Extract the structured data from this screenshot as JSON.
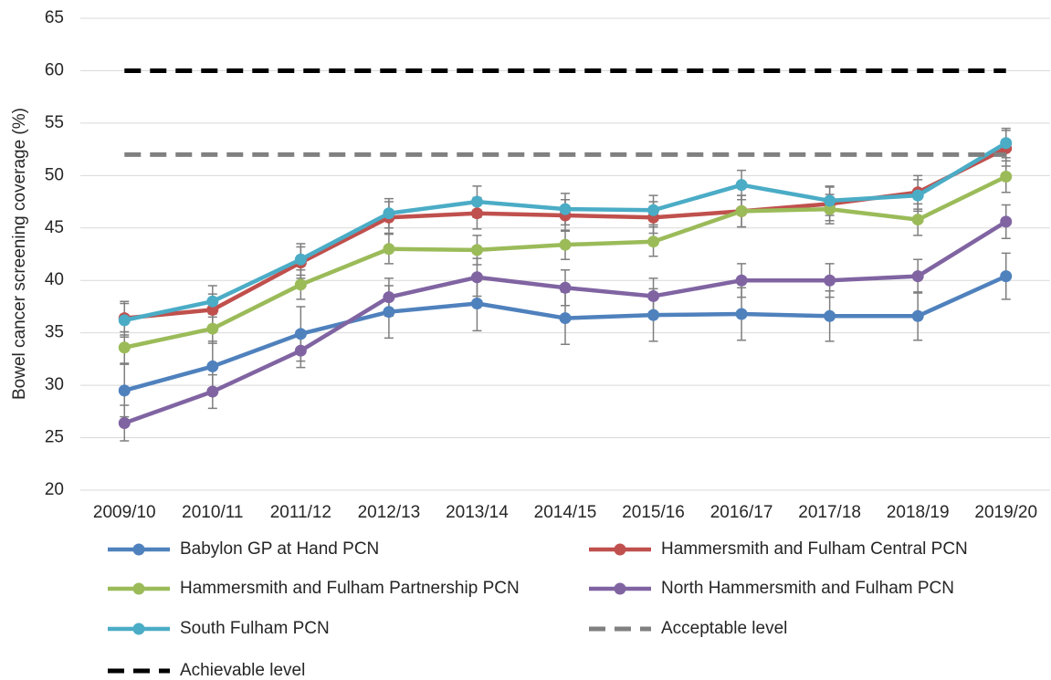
{
  "chart_data": {
    "type": "line",
    "y_label": "Bowel cancer screening coverage (%)",
    "categories": [
      "2009/10",
      "2010/11",
      "2011/12",
      "2012/13",
      "2013/14",
      "2014/15",
      "2015/16",
      "2016/17",
      "2017/18",
      "2018/19",
      "2019/20"
    ],
    "ylim": [
      20,
      65
    ],
    "yticks": [
      20,
      25,
      30,
      35,
      40,
      45,
      50,
      55,
      60,
      65
    ],
    "grid": true,
    "series": [
      {
        "name": "Babylon GP at Hand PCN",
        "color": "#4f81bd",
        "values": [
          29.5,
          31.8,
          34.9,
          37.0,
          37.8,
          36.4,
          36.7,
          36.8,
          36.6,
          36.6,
          40.4
        ],
        "errors": [
          2.5,
          2.4,
          2.6,
          2.5,
          2.6,
          2.5,
          2.5,
          2.5,
          2.4,
          2.3,
          2.2
        ]
      },
      {
        "name": "Hammersmith and Fulham Central PCN",
        "color": "#c0504d",
        "values": [
          36.4,
          37.2,
          41.7,
          46.0,
          46.4,
          46.2,
          46.0,
          46.6,
          47.3,
          48.4,
          52.6
        ],
        "errors": [
          1.6,
          1.5,
          1.5,
          1.5,
          1.5,
          1.5,
          1.5,
          1.5,
          1.6,
          1.6,
          1.7
        ]
      },
      {
        "name": "Hammersmith and Fulham Partnership PCN",
        "color": "#9bbb59",
        "values": [
          33.6,
          35.4,
          39.6,
          43.0,
          42.9,
          43.4,
          43.7,
          46.6,
          46.8,
          45.8,
          49.9
        ],
        "errors": [
          1.5,
          1.4,
          1.4,
          1.4,
          1.4,
          1.4,
          1.4,
          1.5,
          1.4,
          1.5,
          1.5
        ]
      },
      {
        "name": "North Hammersmith and Fulham PCN",
        "color": "#8064a2",
        "values": [
          26.4,
          29.4,
          33.3,
          38.4,
          40.3,
          39.3,
          38.5,
          40.0,
          40.0,
          40.4,
          45.6
        ],
        "errors": [
          1.7,
          1.6,
          1.6,
          1.8,
          1.8,
          1.7,
          1.7,
          1.6,
          1.6,
          1.6,
          1.6
        ]
      },
      {
        "name": "South Fulham PCN",
        "color": "#4bacc6",
        "values": [
          36.2,
          38.0,
          42.0,
          46.4,
          47.5,
          46.8,
          46.7,
          49.1,
          47.6,
          48.1,
          53.1
        ],
        "errors": [
          1.6,
          1.5,
          1.5,
          1.4,
          1.5,
          1.5,
          1.4,
          1.4,
          1.4,
          1.5,
          1.4
        ]
      },
      {
        "name": "Acceptable level",
        "color": "#808080",
        "dashed": true,
        "values": [
          52,
          52,
          52,
          52,
          52,
          52,
          52,
          52,
          52,
          52,
          52
        ]
      },
      {
        "name": "Achievable level",
        "color": "#000000",
        "dashed": true,
        "values": [
          60,
          60,
          60,
          60,
          60,
          60,
          60,
          60,
          60,
          60,
          60
        ]
      }
    ]
  }
}
